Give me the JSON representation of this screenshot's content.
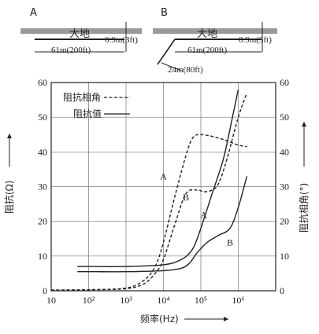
{
  "diagrams": {
    "a": {
      "label": "A",
      "ground": "大地",
      "depth": "0.9m(3ft)",
      "length": "61m(200ft)"
    },
    "b": {
      "label": "B",
      "ground": "大地",
      "depth": "0.9m(3ft)",
      "length": "61m(200ft)",
      "lead": "24m(80ft)"
    }
  },
  "chart_data": {
    "type": "line",
    "xlabel": "频率(Hz)",
    "ylabel_left": "阻抗(Ω)",
    "ylabel_right": "阻抗相角(°)",
    "x_scale": "log",
    "x_ticks": [
      "10",
      "10²",
      "10³",
      "10⁴",
      "10⁵",
      "10⁶"
    ],
    "x_tick_values": [
      10,
      100,
      1000,
      10000,
      100000,
      1000000
    ],
    "xlim": [
      10,
      10000000
    ],
    "ylim_left": [
      0,
      60
    ],
    "ylim_right": [
      0,
      60
    ],
    "y_ticks_left": [
      "0",
      "10",
      "20",
      "30",
      "40",
      "50",
      "60"
    ],
    "y_ticks_right": [
      "0",
      "10",
      "20",
      "30",
      "40",
      "50",
      "60"
    ],
    "grid": true,
    "legend": [
      {
        "label": "阻抗相角",
        "style": "dashed"
      },
      {
        "label": "阻抗值",
        "style": "solid"
      }
    ],
    "series": [
      {
        "name": "阻抗相角",
        "curve": "A",
        "style": "dashed",
        "x": [
          10,
          100,
          1000,
          3000,
          6000,
          10000,
          20000,
          40000,
          60000,
          100000,
          300000,
          1000000,
          1700000
        ],
        "y": [
          0.2,
          0.3,
          0.8,
          3,
          7,
          14,
          27,
          39,
          44,
          45,
          44,
          42,
          41.5
        ]
      },
      {
        "name": "阻抗相角",
        "curve": "B",
        "style": "dashed",
        "x": [
          10,
          100,
          1000,
          3000,
          6000,
          10000,
          20000,
          40000,
          80000,
          120000,
          200000,
          300000,
          500000,
          1000000,
          1700000
        ],
        "y": [
          0.2,
          0.3,
          0.6,
          2,
          5,
          9,
          19,
          28,
          29,
          28.5,
          29,
          31,
          38,
          50,
          57
        ]
      },
      {
        "name": "阻抗值",
        "curve": "A",
        "style": "solid",
        "x": [
          50,
          100,
          1000,
          10000,
          30000,
          60000,
          100000,
          200000,
          400000,
          700000,
          1000000
        ],
        "y": [
          7,
          7,
          7,
          7.5,
          9,
          12,
          18,
          28,
          38,
          50,
          58
        ]
      },
      {
        "name": "阻抗值",
        "curve": "B",
        "style": "solid",
        "x": [
          50,
          100,
          1000,
          10000,
          30000,
          50000,
          80000,
          150000,
          300000,
          600000,
          1000000,
          1700000
        ],
        "y": [
          5.5,
          5.5,
          5.5,
          5.8,
          6.5,
          8,
          11,
          14,
          16,
          18,
          24,
          33
        ]
      }
    ],
    "annotations": [
      {
        "text": "A",
        "x": 10000,
        "y": 32
      },
      {
        "text": "B",
        "x": 40000,
        "y": 26
      },
      {
        "text": "A",
        "x": 120000,
        "y": 21
      },
      {
        "text": "B",
        "x": 600000,
        "y": 13
      }
    ]
  }
}
